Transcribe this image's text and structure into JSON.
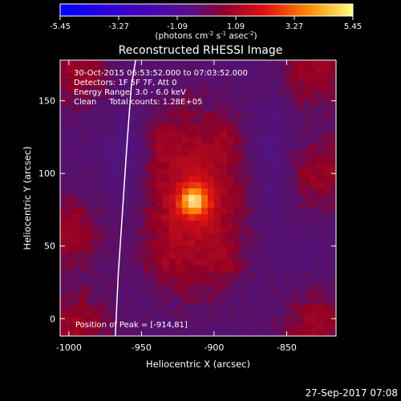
{
  "chart_data": {
    "type": "heatmap",
    "title": "Reconstructed RHESSI Image",
    "xlabel": "Heliocentric X (arcsec)",
    "ylabel": "Heliocentric Y (arcsec)",
    "xlim": [
      -1006,
      -816
    ],
    "ylim": [
      -12,
      178
    ],
    "x_ticks": [
      -1000,
      -950,
      -900,
      -850
    ],
    "x_tick_labels": [
      "-1000",
      "-950",
      "-900",
      "-850"
    ],
    "y_ticks": [
      0,
      50,
      100,
      150
    ],
    "y_tick_labels": [
      "0",
      "50",
      "100",
      "150"
    ],
    "colorbar": {
      "range": [
        -5.45,
        5.45
      ],
      "ticks": [
        -5.45,
        -3.27,
        -1.09,
        1.09,
        3.27,
        5.45
      ],
      "tick_labels": [
        "-5.45",
        "-3.27",
        "-1.09",
        "1.09",
        "3.27",
        "5.45"
      ],
      "unit_label_parts": [
        "(photons cm",
        "-2",
        " s",
        "-1",
        " asec",
        "-2",
        ")"
      ]
    },
    "info_lines": [
      "30-Oct-2015 06:53:52.000 to 07:03:52.000",
      "Detectors: 1F 5F 7F, Att 0",
      "Energy Range: 3.0 - 6.0 keV",
      "Clean     Total counts: 1.28E+05"
    ],
    "peak_label": "Position of Peak = [-914,81]",
    "peak": {
      "x": -914,
      "y": 81,
      "value": 5.45
    },
    "limb_x_arcsec": [
      -968,
      -966,
      -963,
      -960,
      -957,
      -954
    ],
    "limb_y_arcsec": [
      -12,
      30,
      75,
      120,
      160,
      178
    ],
    "timestamp": "27-Sep-2017 07:08"
  }
}
